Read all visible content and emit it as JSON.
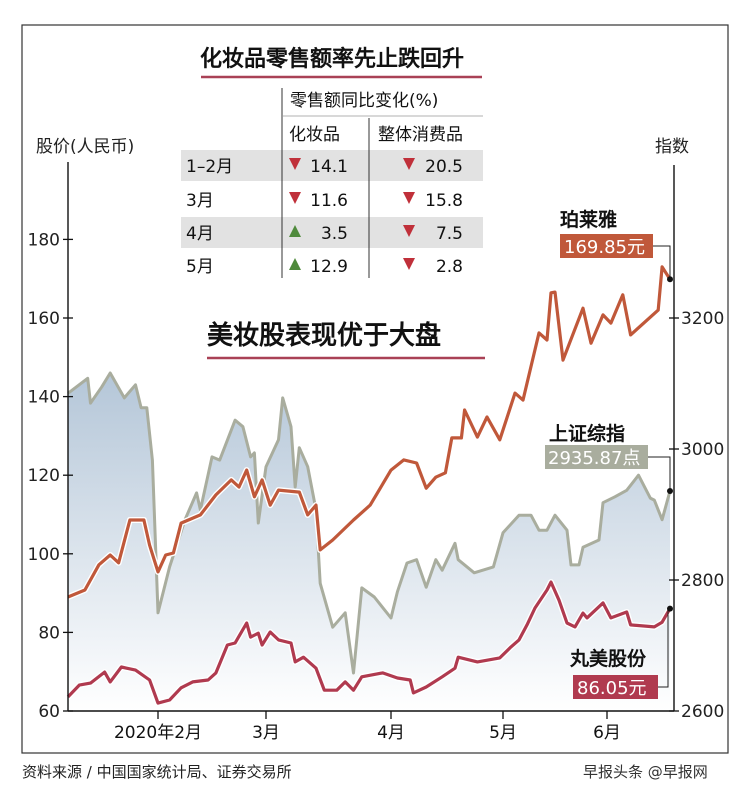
{
  "table": {
    "title": "化妆品零售额率先止跌回升",
    "group_header": "零售额同比变化(%)",
    "columns": [
      "化妆品",
      "整体消费品"
    ],
    "rows": [
      {
        "period": "1–2月",
        "cosmetics": "14.1",
        "cosmetics_dir": "down",
        "overall": "20.5",
        "overall_dir": "down"
      },
      {
        "period": "3月",
        "cosmetics": "11.6",
        "cosmetics_dir": "down",
        "overall": "15.8",
        "overall_dir": "down"
      },
      {
        "period": "4月",
        "cosmetics": "3.5",
        "cosmetics_dir": "up",
        "overall": "7.5",
        "overall_dir": "down"
      },
      {
        "period": "5月",
        "cosmetics": "12.9",
        "cosmetics_dir": "up",
        "overall": "2.8",
        "overall_dir": "down"
      }
    ],
    "up_color": "#4f8a3c",
    "down_color": "#c0303a"
  },
  "footer": {
    "source": "资料来源 / 中国国家统计局、证券交易所",
    "watermark": "早报头条 @早报网"
  },
  "chart_data": {
    "type": "line",
    "title": "美妆股表现优于大盘",
    "ylabel_left": "股价(人民币)",
    "ylabel_right": "指数",
    "ylim_left": [
      60,
      190
    ],
    "ylim_right": [
      2600,
      3400
    ],
    "yticks_left": [
      "60",
      "80",
      "100",
      "120",
      "140",
      "160",
      "180"
    ],
    "yticks_right": [
      "2600",
      "2800",
      "3000",
      "3200"
    ],
    "xlim": [
      "2020-01-02",
      "2020-06-17"
    ],
    "xticks": [
      {
        "date": "2020-02-03",
        "label": "2020年2月"
      },
      {
        "date": "2020-03-02",
        "label": "3月"
      },
      {
        "date": "2020-04-01",
        "label": "4月"
      },
      {
        "date": "2020-05-06",
        "label": "5月"
      },
      {
        "date": "2020-06-01",
        "label": "6月"
      }
    ],
    "grid": false,
    "series": [
      {
        "name": "珀莱雅",
        "axis": "left",
        "color": "#c0583a",
        "end_label": "169.85元",
        "x": [
          "2020-01-02",
          "2020-01-08",
          "2020-01-13",
          "2020-01-17",
          "2020-01-20",
          "2020-01-24",
          "2020-01-29",
          "2020-01-31",
          "2020-02-03",
          "2020-02-05",
          "2020-02-07",
          "2020-02-09",
          "2020-02-14",
          "2020-02-18",
          "2020-02-22",
          "2020-02-24",
          "2020-02-26",
          "2020-02-28",
          "2020-03-01",
          "2020-03-03",
          "2020-03-05",
          "2020-03-10",
          "2020-03-12",
          "2020-03-14",
          "2020-03-15",
          "2020-03-18",
          "2020-03-23",
          "2020-03-27",
          "2020-04-01",
          "2020-04-05",
          "2020-04-09",
          "2020-04-12",
          "2020-04-15",
          "2020-04-18",
          "2020-04-20",
          "2020-04-23",
          "2020-04-24",
          "2020-04-28",
          "2020-05-01",
          "2020-05-05",
          "2020-05-09",
          "2020-05-11",
          "2020-05-15",
          "2020-05-17",
          "2020-05-18",
          "2020-05-19",
          "2020-05-21",
          "2020-05-26",
          "2020-05-28",
          "2020-05-31",
          "2020-06-02",
          "2020-06-05",
          "2020-06-07",
          "2020-06-14",
          "2020-06-15",
          "2020-06-17"
        ],
        "values": [
          89.0,
          90.8,
          97.2,
          99.7,
          97.7,
          108.6,
          108.6,
          102.2,
          95.4,
          99.7,
          100.2,
          107.8,
          109.9,
          115.0,
          118.8,
          117.0,
          121.3,
          114.5,
          118.8,
          112.4,
          116.2,
          115.7,
          109.9,
          112.4,
          101.0,
          103.5,
          108.6,
          112.4,
          121.3,
          123.9,
          123.1,
          116.7,
          119.5,
          120.6,
          129.5,
          129.5,
          136.6,
          129.7,
          134.8,
          129.0,
          140.9,
          139.1,
          156.2,
          154.4,
          166.4,
          166.6,
          149.3,
          162.5,
          153.6,
          160.8,
          158.7,
          165.9,
          155.7,
          162.0,
          173.0,
          169.85
        ]
      },
      {
        "name": "上证综指",
        "axis": "right",
        "color": "#a9ad9e",
        "end_label": "2935.87点",
        "x": [
          "2020-01-02",
          "2020-01-09",
          "2020-01-10",
          "2020-01-14",
          "2020-01-17",
          "2020-01-22",
          "2020-01-26",
          "2020-01-28",
          "2020-01-30",
          "2020-02-01",
          "2020-02-03",
          "2020-02-06",
          "2020-02-10",
          "2020-02-13",
          "2020-02-14",
          "2020-02-17",
          "2020-02-19",
          "2020-02-23",
          "2020-02-25",
          "2020-02-27",
          "2020-02-28",
          "2020-02-29",
          "2020-03-02",
          "2020-03-05",
          "2020-03-06",
          "2020-03-08",
          "2020-03-09",
          "2020-03-10",
          "2020-03-12",
          "2020-03-14",
          "2020-03-15",
          "2020-03-18",
          "2020-03-21",
          "2020-03-23",
          "2020-03-25",
          "2020-03-28",
          "2020-04-01",
          "2020-04-03",
          "2020-04-06",
          "2020-04-09",
          "2020-04-12",
          "2020-04-15",
          "2020-04-17",
          "2020-04-21",
          "2020-04-22",
          "2020-04-27",
          "2020-05-03",
          "2020-05-06",
          "2020-05-10",
          "2020-05-13",
          "2020-05-15",
          "2020-05-17",
          "2020-05-19",
          "2020-05-22",
          "2020-05-23",
          "2020-05-25",
          "2020-05-26",
          "2020-05-30",
          "2020-05-31",
          "2020-06-03",
          "2020-06-06",
          "2020-06-09",
          "2020-06-12",
          "2020-06-13",
          "2020-06-15",
          "2020-06-17"
        ],
        "values": [
          3085,
          3108,
          3070,
          3095,
          3116,
          3078,
          3098,
          3063,
          3063,
          2983,
          2750,
          2820,
          2892,
          2933,
          2907,
          2988,
          2983,
          3044,
          3034,
          2988,
          2994,
          2887,
          2973,
          3014,
          3078,
          3034,
          2942,
          3002,
          2973,
          2907,
          2795,
          2728,
          2750,
          2658,
          2788,
          2774,
          2742,
          2782,
          2826,
          2831,
          2789,
          2831,
          2815,
          2856,
          2831,
          2811,
          2820,
          2872,
          2899,
          2899,
          2876,
          2876,
          2899,
          2876,
          2823,
          2823,
          2850,
          2861,
          2918,
          2927,
          2937,
          2960,
          2925,
          2922,
          2892,
          2935.87
        ]
      },
      {
        "name": "丸美股份",
        "axis": "left",
        "color": "#b03a4f",
        "end_label": "86.05元",
        "x": [
          "2020-01-02",
          "2020-01-06",
          "2020-01-10",
          "2020-01-15",
          "2020-01-17",
          "2020-01-21",
          "2020-01-26",
          "2020-01-31",
          "2020-02-03",
          "2020-02-06",
          "2020-02-09",
          "2020-02-12",
          "2020-02-16",
          "2020-02-18",
          "2020-02-21",
          "2020-02-23",
          "2020-02-26",
          "2020-02-27",
          "2020-02-29",
          "2020-03-01",
          "2020-03-03",
          "2020-03-05",
          "2020-03-08",
          "2020-03-09",
          "2020-03-11",
          "2020-03-14",
          "2020-03-16",
          "2020-03-19",
          "2020-03-21",
          "2020-03-23",
          "2020-03-25",
          "2020-03-30",
          "2020-04-03",
          "2020-04-07",
          "2020-04-08",
          "2020-04-12",
          "2020-04-17",
          "2020-04-21",
          "2020-04-22",
          "2020-04-28",
          "2020-05-05",
          "2020-05-08",
          "2020-05-10",
          "2020-05-12",
          "2020-05-14",
          "2020-05-17",
          "2020-05-18",
          "2020-05-20",
          "2020-05-22",
          "2020-05-24",
          "2020-05-26",
          "2020-05-27",
          "2020-05-31",
          "2020-06-02",
          "2020-06-06",
          "2020-06-07",
          "2020-06-13",
          "2020-06-15",
          "2020-06-17"
        ],
        "values": [
          63.6,
          66.6,
          67.1,
          69.9,
          67.4,
          71.2,
          70.4,
          67.9,
          62.0,
          62.8,
          65.9,
          67.4,
          67.9,
          69.7,
          76.8,
          77.3,
          82.4,
          78.8,
          79.8,
          76.8,
          80.1,
          78.1,
          77.3,
          72.5,
          73.7,
          70.9,
          65.3,
          65.3,
          67.4,
          65.3,
          68.7,
          69.7,
          68.4,
          67.9,
          64.6,
          66.1,
          68.7,
          70.9,
          73.7,
          72.5,
          73.5,
          76.3,
          78.1,
          81.9,
          86.2,
          90.8,
          92.8,
          88.2,
          82.4,
          81.4,
          84.9,
          83.7,
          87.5,
          83.7,
          85.2,
          81.9,
          81.4,
          82.6,
          86.05
        ]
      }
    ]
  }
}
